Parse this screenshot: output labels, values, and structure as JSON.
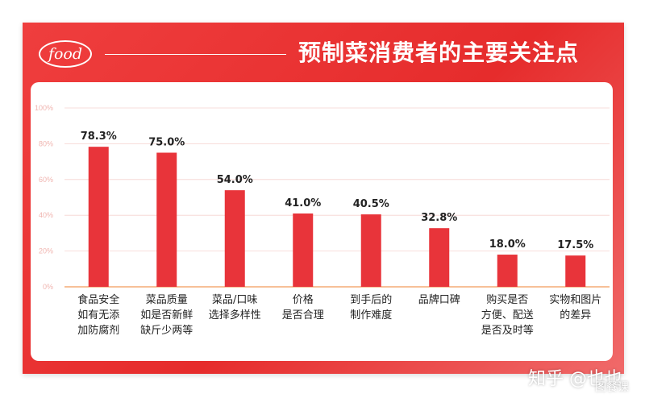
{
  "header": {
    "logo_text": "food",
    "title": "预制菜消费者的主要关注点"
  },
  "watermark": {
    "text": "知乎 @也也",
    "sub": "图餐课"
  },
  "colors": {
    "card_red": "#e8302f",
    "bar_red": "#e8343a",
    "axis_orange": "#f29a5a",
    "grid": "#f5d2cf",
    "tick": "#f0b5b0"
  },
  "chart_data": {
    "type": "bar",
    "title": "预制菜消费者的主要关注点",
    "categories": [
      [
        "食品安全",
        "如有无添",
        "加防腐剂"
      ],
      [
        "菜品质量",
        "如是否新鲜",
        "缺斤少两等"
      ],
      [
        "菜品/口味",
        "选择多样性"
      ],
      [
        "价格",
        "是否合理"
      ],
      [
        "到手后的",
        "制作难度"
      ],
      [
        "品牌口碑"
      ],
      [
        "购买是否",
        "方便、配送",
        "是否及时等"
      ],
      [
        "实物和图片",
        "的差异"
      ]
    ],
    "values": [
      78.3,
      75.0,
      54.0,
      41.0,
      40.5,
      32.8,
      18.0,
      17.5
    ],
    "value_labels": [
      "78.3%",
      "75.0%",
      "54.0%",
      "41.0%",
      "40.5%",
      "32.8%",
      "18.0%",
      "17.5%"
    ],
    "y_ticks": [
      "0%",
      "20%",
      "40%",
      "60%",
      "80%",
      "100%"
    ],
    "y_tick_values": [
      0,
      20,
      40,
      60,
      80,
      100
    ],
    "ylim": [
      0,
      100
    ],
    "grid": true,
    "xlabel": "",
    "ylabel": ""
  }
}
